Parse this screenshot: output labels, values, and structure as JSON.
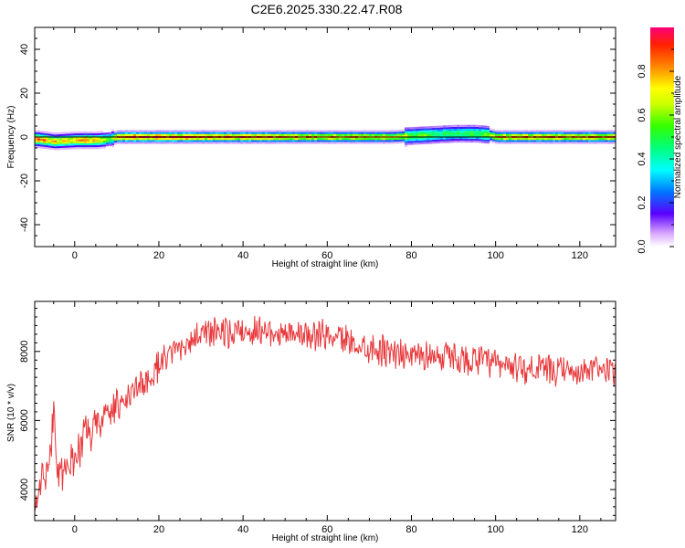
{
  "title": "C2E6.2025.330.22.47.R08",
  "chart_data": [
    {
      "type": "heatmap",
      "xlabel": "Height of straight line (km)",
      "ylabel": "Frequency (Hz)",
      "xlim": [
        -9.5,
        128.5
      ],
      "ylim": [
        -50,
        50
      ],
      "xticks": [
        "0",
        "20",
        "40",
        "60",
        "80",
        "100",
        "120"
      ],
      "yticks": [
        "-40",
        "-20",
        "0",
        "20",
        "40"
      ],
      "colorbar": {
        "label": "Normalized spectral amplitude",
        "ticks": [
          "0.0",
          "0.2",
          "0.4",
          "0.6",
          "0.8"
        ],
        "range": [
          0,
          1
        ]
      },
      "ridge": {
        "x": [
          -9,
          -5,
          0,
          5,
          8,
          10,
          20,
          40,
          60,
          75,
          80,
          85,
          90,
          95,
          98,
          100,
          110,
          120,
          128
        ],
        "freq": [
          -1,
          -2,
          -1.5,
          -1.5,
          -1,
          0,
          0,
          0,
          0,
          0,
          0.5,
          1,
          1.5,
          1.5,
          1,
          0,
          0,
          0,
          0
        ],
        "amplitude": [
          0.9,
          0.8,
          0.85,
          0.85,
          0.5,
          1.0,
          1.0,
          0.95,
          0.85,
          0.8,
          0.6,
          0.55,
          0.5,
          0.55,
          0.6,
          0.9,
          0.9,
          0.9,
          0.85
        ]
      }
    },
    {
      "type": "line",
      "xlabel": "Height of straight line (km)",
      "ylabel": "SNR (10 * v/v)",
      "xlim": [
        -9.5,
        128.5
      ],
      "ylim": [
        3100,
        9450
      ],
      "xticks": [
        "0",
        "20",
        "40",
        "60",
        "80",
        "100",
        "120"
      ],
      "yticks": [
        "4000",
        "6000",
        "8000"
      ],
      "color": "#e8383b",
      "series": [
        {
          "name": "SNR",
          "x": [
            -9.5,
            -8,
            -6,
            -5,
            -4,
            -3,
            -2,
            0,
            2,
            5,
            8,
            10,
            14,
            18,
            22,
            26,
            30,
            35,
            40,
            45,
            50,
            55,
            60,
            65,
            70,
            75,
            80,
            85,
            90,
            95,
            100,
            105,
            110,
            115,
            120,
            125,
            128.5
          ],
          "values": [
            3700,
            4300,
            4600,
            6400,
            4700,
            4300,
            4500,
            5000,
            5400,
            5800,
            6200,
            6400,
            6800,
            7300,
            7800,
            8200,
            8500,
            8500,
            8600,
            8600,
            8550,
            8500,
            8450,
            8300,
            8100,
            8000,
            7900,
            7900,
            7800,
            7750,
            7600,
            7550,
            7500,
            7400,
            7400,
            7450,
            7500
          ]
        }
      ]
    }
  ]
}
